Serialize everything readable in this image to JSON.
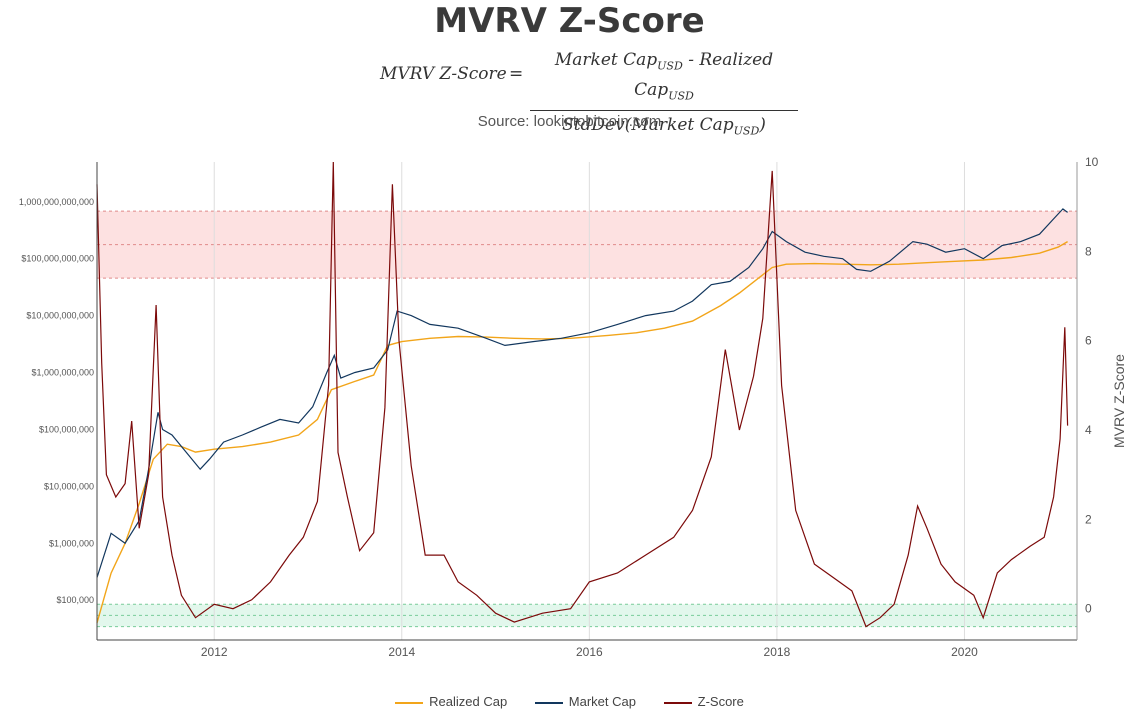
{
  "title": "MVRV Z-Score",
  "formula": {
    "lhs": "MVRV Z-Score",
    "eq": "=",
    "num_a": "Market Cap",
    "num_sub_a": "USD",
    "num_mid": " - Realized Cap",
    "num_sub_b": "USD",
    "den_a": "StdDev(Market Cap",
    "den_sub": "USD",
    "den_end": ")"
  },
  "source": "Source: lookintobitcoin.com",
  "colors": {
    "realized": "#f2a51a",
    "market": "#12375e",
    "market_in_band": "#7a6f92",
    "zscore": "#7c0a0a",
    "zscore_in_band": "#9c7a70",
    "red_band": "#fde1e1",
    "red_band_line": "#e08a8a",
    "green_band": "#e2f7ec",
    "green_band_line": "#7acc9a",
    "grid": "#dddddd",
    "axis": "#555555"
  },
  "chart_data": {
    "type": "line",
    "title": "MVRV Z-Score",
    "xlabel": "",
    "ylabel_left": "",
    "ylabel_right": "MVRV Z-Score",
    "x_ticks": [
      "2012",
      "2014",
      "2016",
      "2018",
      "2020"
    ],
    "x_tick_years": [
      2012,
      2014,
      2016,
      2018,
      2020
    ],
    "xlim": [
      2010.75,
      2021.2
    ],
    "y_left_scale": "log",
    "y_left_ticks": [
      "1,000,000,000,000",
      "$100,000,000,000",
      "$10,000,000,000",
      "$1,000,000,000",
      "$100,000,000",
      "$10,000,000",
      "$1,000,000",
      "$100,000"
    ],
    "y_left_tick_values": [
      1000000000000.0,
      100000000000.0,
      10000000000.0,
      1000000000.0,
      100000000.0,
      10000000.0,
      1000000.0,
      100000.0
    ],
    "y_left_lim": [
      20000,
      5000000000000.0
    ],
    "y_right_ticks": [
      "10",
      "8",
      "6",
      "4",
      "2",
      "0"
    ],
    "y_right_tick_values": [
      10,
      8,
      6,
      4,
      2,
      0
    ],
    "y_right_lim": [
      -0.7,
      10
    ],
    "red_band": [
      7.4,
      8.9
    ],
    "green_band": [
      -0.4,
      0.1
    ],
    "legend_position": "bottom-center",
    "series": [
      {
        "name": "Realized Cap",
        "x": [
          2010.75,
          2010.9,
          2011.05,
          2011.2,
          2011.35,
          2011.5,
          2011.65,
          2011.8,
          2012.0,
          2012.3,
          2012.6,
          2012.9,
          2013.1,
          2013.25,
          2013.5,
          2013.7,
          2013.85,
          2014.0,
          2014.3,
          2014.6,
          2014.9,
          2015.2,
          2015.5,
          2015.8,
          2016.2,
          2016.5,
          2016.8,
          2017.1,
          2017.4,
          2017.6,
          2017.8,
          2017.95,
          2018.1,
          2018.4,
          2018.7,
          2019.0,
          2019.3,
          2019.6,
          2019.9,
          2020.2,
          2020.5,
          2020.8,
          2021.0,
          2021.1
        ],
        "values": [
          40000,
          300000,
          1000000,
          5000000,
          30000000,
          55000000,
          50000000,
          40000000,
          45000000,
          50000000,
          60000000,
          80000000,
          150000000,
          500000000,
          700000000,
          900000000,
          3000000000,
          3500000000,
          4000000000,
          4300000000,
          4200000000,
          4000000000,
          3900000000,
          4000000000,
          4500000000,
          5000000000,
          6000000000,
          8000000000,
          15000000000,
          25000000000,
          45000000000,
          70000000000,
          80000000000,
          82000000000,
          80000000000,
          78000000000,
          80000000000,
          85000000000,
          90000000000,
          95000000000,
          105000000000,
          125000000000,
          160000000000,
          200000000000
        ]
      },
      {
        "name": "Market Cap",
        "x": [
          2010.75,
          2010.9,
          2011.05,
          2011.2,
          2011.3,
          2011.4,
          2011.45,
          2011.55,
          2011.7,
          2011.85,
          2011.95,
          2012.1,
          2012.3,
          2012.5,
          2012.7,
          2012.9,
          2013.05,
          2013.2,
          2013.28,
          2013.35,
          2013.5,
          2013.7,
          2013.85,
          2013.95,
          2014.1,
          2014.3,
          2014.6,
          2014.9,
          2015.1,
          2015.4,
          2015.7,
          2016.0,
          2016.3,
          2016.6,
          2016.9,
          2017.1,
          2017.3,
          2017.5,
          2017.7,
          2017.85,
          2017.95,
          2018.1,
          2018.3,
          2018.5,
          2018.7,
          2018.85,
          2019.0,
          2019.2,
          2019.45,
          2019.6,
          2019.8,
          2020.0,
          2020.2,
          2020.4,
          2020.6,
          2020.8,
          2020.95,
          2021.05,
          2021.1
        ],
        "values": [
          250000,
          1500000,
          1000000,
          2500000,
          20000000,
          200000000,
          100000000,
          80000000,
          40000000,
          20000000,
          30000000,
          60000000,
          80000000,
          110000000,
          150000000,
          130000000,
          250000000,
          1000000000,
          2000000000,
          800000000,
          1000000000,
          1200000000,
          2500000000,
          12000000000,
          10000000000,
          7000000000,
          6000000000,
          4000000000,
          3000000000,
          3500000000,
          4000000000,
          5000000000,
          7000000000,
          10000000000,
          12000000000,
          18000000000,
          35000000000,
          40000000000,
          70000000000,
          150000000000,
          300000000000,
          200000000000,
          130000000000,
          110000000000,
          100000000000,
          65000000000,
          60000000000,
          90000000000,
          200000000000,
          180000000000,
          130000000000,
          150000000000,
          100000000000,
          170000000000,
          200000000000,
          270000000000,
          500000000000,
          750000000000,
          650000000000
        ]
      },
      {
        "name": "Z-Score",
        "x": [
          2010.75,
          2010.8,
          2010.85,
          2010.95,
          2011.05,
          2011.12,
          2011.2,
          2011.3,
          2011.38,
          2011.45,
          2011.55,
          2011.65,
          2011.8,
          2012.0,
          2012.2,
          2012.4,
          2012.6,
          2012.8,
          2012.95,
          2013.1,
          2013.22,
          2013.27,
          2013.32,
          2013.42,
          2013.55,
          2013.7,
          2013.82,
          2013.9,
          2013.97,
          2014.1,
          2014.25,
          2014.45,
          2014.6,
          2014.8,
          2015.0,
          2015.2,
          2015.5,
          2015.8,
          2016.0,
          2016.3,
          2016.6,
          2016.9,
          2017.1,
          2017.3,
          2017.45,
          2017.6,
          2017.75,
          2017.85,
          2017.95,
          2018.05,
          2018.2,
          2018.4,
          2018.6,
          2018.8,
          2018.95,
          2019.1,
          2019.25,
          2019.4,
          2019.5,
          2019.6,
          2019.75,
          2019.9,
          2020.1,
          2020.2,
          2020.35,
          2020.5,
          2020.7,
          2020.85,
          2020.95,
          2021.02,
          2021.07,
          2021.1
        ],
        "values": [
          9.5,
          5.5,
          3.0,
          2.5,
          2.8,
          4.2,
          1.8,
          3.0,
          6.8,
          2.5,
          1.2,
          0.3,
          -0.2,
          0.1,
          0.0,
          0.2,
          0.6,
          1.2,
          1.6,
          2.4,
          5.0,
          10.0,
          3.5,
          2.5,
          1.3,
          1.7,
          4.5,
          9.5,
          6.0,
          3.2,
          1.2,
          1.2,
          0.6,
          0.3,
          -0.1,
          -0.3,
          -0.1,
          0.0,
          0.6,
          0.8,
          1.2,
          1.6,
          2.2,
          3.4,
          5.8,
          4.0,
          5.2,
          6.5,
          9.8,
          5.0,
          2.2,
          1.0,
          0.7,
          0.4,
          -0.4,
          -0.2,
          0.1,
          1.2,
          2.3,
          1.8,
          1.0,
          0.6,
          0.3,
          -0.2,
          0.8,
          1.1,
          1.4,
          1.6,
          2.5,
          3.8,
          6.3,
          4.1
        ]
      }
    ]
  }
}
